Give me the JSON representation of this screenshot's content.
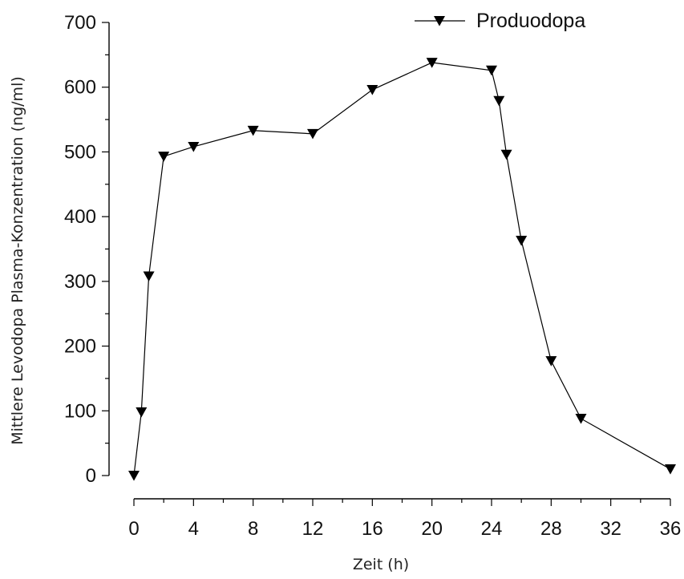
{
  "chart_data": {
    "type": "line",
    "title": "",
    "xlabel": "Zeit (h)",
    "ylabel": "Mittlere Levodopa Plasma-Konzentration (ng/ml)",
    "xlim": [
      0,
      36
    ],
    "ylim": [
      0,
      700
    ],
    "xticks": [
      0,
      4,
      8,
      12,
      16,
      20,
      24,
      28,
      32,
      36
    ],
    "yticks": [
      0,
      100,
      200,
      300,
      400,
      500,
      600,
      700
    ],
    "x_minor_ticks": [
      2,
      6,
      10,
      14,
      18,
      22,
      26,
      30,
      34
    ],
    "y_minor_ticks": [
      50,
      150,
      250,
      350,
      450,
      550,
      650
    ],
    "legend_position": "top-right",
    "grid": false,
    "marker": "triangle-down",
    "color": "#000000",
    "series": [
      {
        "name": "Produodopa",
        "x": [
          0,
          0.5,
          1,
          2,
          4,
          8,
          12,
          16,
          20,
          24,
          24.5,
          25,
          26,
          28,
          30,
          36
        ],
        "y": [
          0,
          98,
          308,
          493,
          508,
          533,
          528,
          596,
          638,
          626,
          579,
          496,
          363,
          177,
          88,
          10
        ]
      }
    ]
  }
}
